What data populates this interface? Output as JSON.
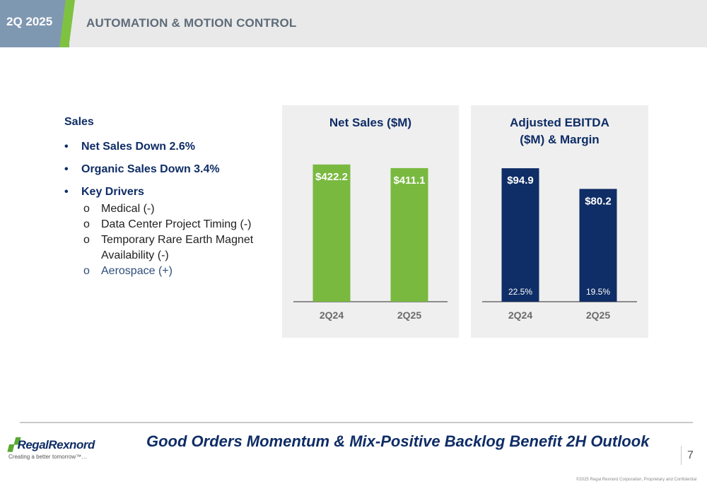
{
  "header": {
    "period": "2Q 2025",
    "title": "AUTOMATION & MOTION CONTROL"
  },
  "summary": {
    "heading": "Sales",
    "bullets": [
      "Net Sales Down 2.6%",
      "Organic Sales Down 3.4%",
      "Key Drivers"
    ],
    "sub_marker": "o",
    "bullet_marker": "•",
    "drivers": [
      "Medical (-)",
      "Data Center Project Timing (-)",
      "Temporary Rare Earth Magnet",
      "Availability (-)",
      "Aerospace (+)"
    ]
  },
  "chart_data": [
    {
      "type": "bar",
      "title": "Net Sales ($M)",
      "categories": [
        "2Q24",
        "2Q25"
      ],
      "values": [
        422.2,
        411.1
      ],
      "data_labels": [
        "$422.2",
        "$411.1"
      ],
      "ylim": [
        0,
        450
      ],
      "grid": false,
      "color": "#79b940"
    },
    {
      "type": "bar",
      "title_lines": [
        "Adjusted EBITDA",
        "($M) & Margin"
      ],
      "categories": [
        "2Q24",
        "2Q25"
      ],
      "values": [
        94.9,
        80.2
      ],
      "data_labels": [
        "$94.9",
        "$80.2"
      ],
      "margins": [
        "22.5%",
        "19.5%"
      ],
      "ylim": [
        0,
        104
      ],
      "grid": false,
      "color": "#0f2d66"
    }
  ],
  "footer": {
    "logo_main": "Regal",
    "logo_second": "Rexnord",
    "tagline": "Creating a better tomorrow™…",
    "headline": "Good Orders Momentum & Mix-Positive Backlog Benefit 2H Outlook",
    "page_number": "7",
    "copyright": "©2025 Regal Rexnord Corporation, Proprietary and Confidential"
  }
}
